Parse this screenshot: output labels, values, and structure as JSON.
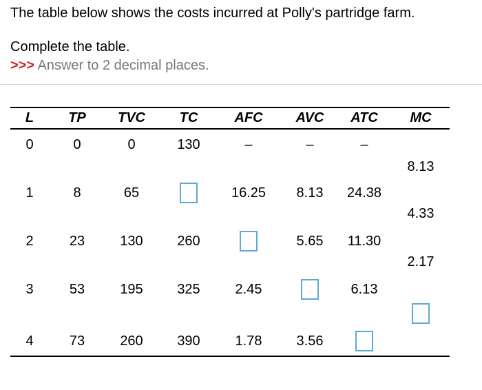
{
  "intro": "The table below shows the costs incurred at Polly's partridge farm.",
  "instruction": "Complete the table.",
  "hint": {
    "arrows": ">>>",
    "text": " Answer to 2 decimal places."
  },
  "table": {
    "headers": [
      "L",
      "TP",
      "TVC",
      "TC",
      "AFC",
      "AVC",
      "ATC",
      "MC"
    ],
    "rows": [
      [
        "0",
        "0",
        "0",
        "130",
        "–",
        "–",
        "–"
      ],
      [
        "1",
        "8",
        "65",
        "",
        "16.25",
        "8.13",
        "24.38"
      ],
      [
        "2",
        "23",
        "130",
        "260",
        "",
        "5.65",
        "11.30"
      ],
      [
        "3",
        "53",
        "195",
        "325",
        "2.45",
        "",
        "6.13"
      ],
      [
        "4",
        "73",
        "260",
        "390",
        "1.78",
        "3.56",
        ""
      ]
    ],
    "mc": [
      "8.13",
      "4.33",
      "2.17",
      ""
    ]
  }
}
